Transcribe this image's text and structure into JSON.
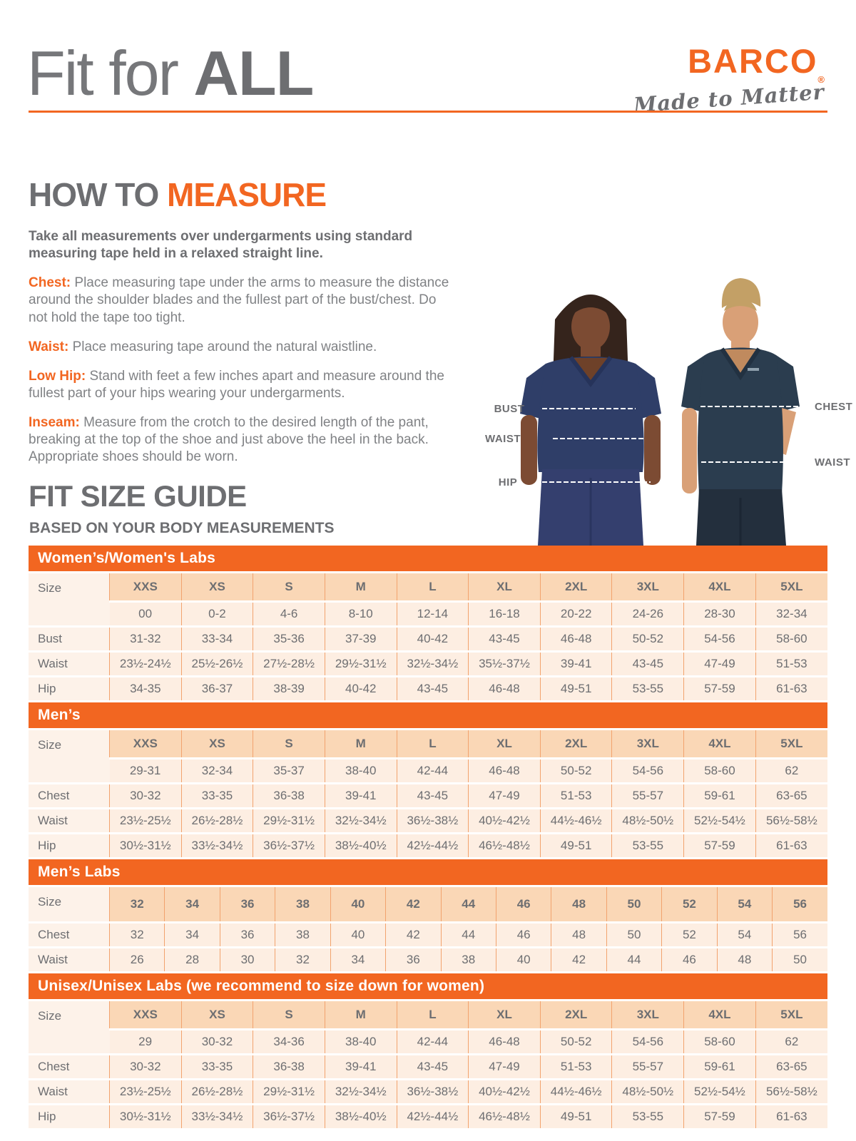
{
  "colors": {
    "orange": "#F26621",
    "heading_gray": "#6D6E71",
    "body_gray": "#808285",
    "table_cell_bg": "#FDEEE2",
    "table_header_bg": "#FAD7B6",
    "table_border": "#F2A36E",
    "female_scrub": "#2F3E68",
    "female_pants": "#343F6E",
    "male_scrub": "#2B3D4F",
    "male_pants": "#232F3D"
  },
  "header": {
    "title_light": "Fit for ",
    "title_bold": "ALL",
    "brand": "BARCO",
    "brand_reg": "®",
    "tagline": "Made to Matter"
  },
  "how_to_measure": {
    "title_gray": "HOW TO ",
    "title_orange": "MEASURE",
    "intro": "Take all measurements over undergarments using standard measuring tape held in a relaxed straight line.",
    "items": [
      {
        "label": "Chest:",
        "text": " Place measuring tape under the arms to measure the distance around the shoulder blades and the fullest part of the bust/chest. Do not hold the tape too tight."
      },
      {
        "label": "Waist:",
        "text": " Place measuring tape around the natural waistline."
      },
      {
        "label": "Low Hip:",
        "text": " Stand with feet a few inches apart and measure around the fullest part of your hips wearing your undergarments."
      },
      {
        "label": "Inseam:",
        "text": " Measure from the crotch to the desired length of the pant, breaking at the top of the shoe and just above the heel in the back. Appropriate shoes should be worn."
      }
    ]
  },
  "figure": {
    "female_labels": [
      "BUST",
      "WAIST",
      "HIP"
    ],
    "male_labels": [
      "CHEST",
      "WAIST"
    ]
  },
  "size_guide": {
    "title": "FIT SIZE GUIDE",
    "subtitle": "BASED ON YOUR BODY MEASUREMENTS",
    "tables": [
      {
        "banner": "Women’s/Women's Labs",
        "label_col": "Size",
        "header_row": [
          "XXS",
          "XS",
          "S",
          "M",
          "L",
          "XL",
          "2XL",
          "3XL",
          "4XL",
          "5XL"
        ],
        "sub_row": [
          "00",
          "0-2",
          "4-6",
          "8-10",
          "12-14",
          "16-18",
          "20-22",
          "24-26",
          "28-30",
          "32-34"
        ],
        "rows": [
          {
            "label": "Bust",
            "values": [
              "31-32",
              "33-34",
              "35-36",
              "37-39",
              "40-42",
              "43-45",
              "46-48",
              "50-52",
              "54-56",
              "58-60"
            ]
          },
          {
            "label": "Waist",
            "values": [
              "23½-24½",
              "25½-26½",
              "27½-28½",
              "29½-31½",
              "32½-34½",
              "35½-37½",
              "39-41",
              "43-45",
              "47-49",
              "51-53"
            ]
          },
          {
            "label": "Hip",
            "values": [
              "34-35",
              "36-37",
              "38-39",
              "40-42",
              "43-45",
              "46-48",
              "49-51",
              "53-55",
              "57-59",
              "61-63"
            ]
          }
        ]
      },
      {
        "banner": "Men’s",
        "label_col": "Size",
        "header_row": [
          "XXS",
          "XS",
          "S",
          "M",
          "L",
          "XL",
          "2XL",
          "3XL",
          "4XL",
          "5XL"
        ],
        "sub_row": [
          "29-31",
          "32-34",
          "35-37",
          "38-40",
          "42-44",
          "46-48",
          "50-52",
          "54-56",
          "58-60",
          "62"
        ],
        "rows": [
          {
            "label": "Chest",
            "values": [
              "30-32",
              "33-35",
              "36-38",
              "39-41",
              "43-45",
              "47-49",
              "51-53",
              "55-57",
              "59-61",
              "63-65"
            ]
          },
          {
            "label": "Waist",
            "values": [
              "23½-25½",
              "26½-28½",
              "29½-31½",
              "32½-34½",
              "36½-38½",
              "40½-42½",
              "44½-46½",
              "48½-50½",
              "52½-54½",
              "56½-58½"
            ]
          },
          {
            "label": "Hip",
            "values": [
              "30½-31½",
              "33½-34½",
              "36½-37½",
              "38½-40½",
              "42½-44½",
              "46½-48½",
              "49-51",
              "53-55",
              "57-59",
              "61-63"
            ]
          }
        ]
      },
      {
        "banner": "Men’s Labs",
        "label_col": "Size",
        "header_row": [
          "32",
          "34",
          "36",
          "38",
          "40",
          "42",
          "44",
          "46",
          "48",
          "50",
          "52",
          "54",
          "56"
        ],
        "rows": [
          {
            "label": "Chest",
            "values": [
              "32",
              "34",
              "36",
              "38",
              "40",
              "42",
              "44",
              "46",
              "48",
              "50",
              "52",
              "54",
              "56"
            ]
          },
          {
            "label": "Waist",
            "values": [
              "26",
              "28",
              "30",
              "32",
              "34",
              "36",
              "38",
              "40",
              "42",
              "44",
              "46",
              "48",
              "50"
            ]
          }
        ]
      },
      {
        "banner": "Unisex/Unisex Labs (we recommend to size down for women)",
        "label_col": "Size",
        "header_row": [
          "XXS",
          "XS",
          "S",
          "M",
          "L",
          "XL",
          "2XL",
          "3XL",
          "4XL",
          "5XL"
        ],
        "sub_row": [
          "29",
          "30-32",
          "34-36",
          "38-40",
          "42-44",
          "46-48",
          "50-52",
          "54-56",
          "58-60",
          "62"
        ],
        "rows": [
          {
            "label": "Chest",
            "values": [
              "30-32",
              "33-35",
              "36-38",
              "39-41",
              "43-45",
              "47-49",
              "51-53",
              "55-57",
              "59-61",
              "63-65"
            ]
          },
          {
            "label": "Waist",
            "values": [
              "23½-25½",
              "26½-28½",
              "29½-31½",
              "32½-34½",
              "36½-38½",
              "40½-42½",
              "44½-46½",
              "48½-50½",
              "52½-54½",
              "56½-58½"
            ]
          },
          {
            "label": "Hip",
            "values": [
              "30½-31½",
              "33½-34½",
              "36½-37½",
              "38½-40½",
              "42½-44½",
              "46½-48½",
              "49-51",
              "53-55",
              "57-59",
              "61-63"
            ]
          }
        ]
      }
    ]
  }
}
